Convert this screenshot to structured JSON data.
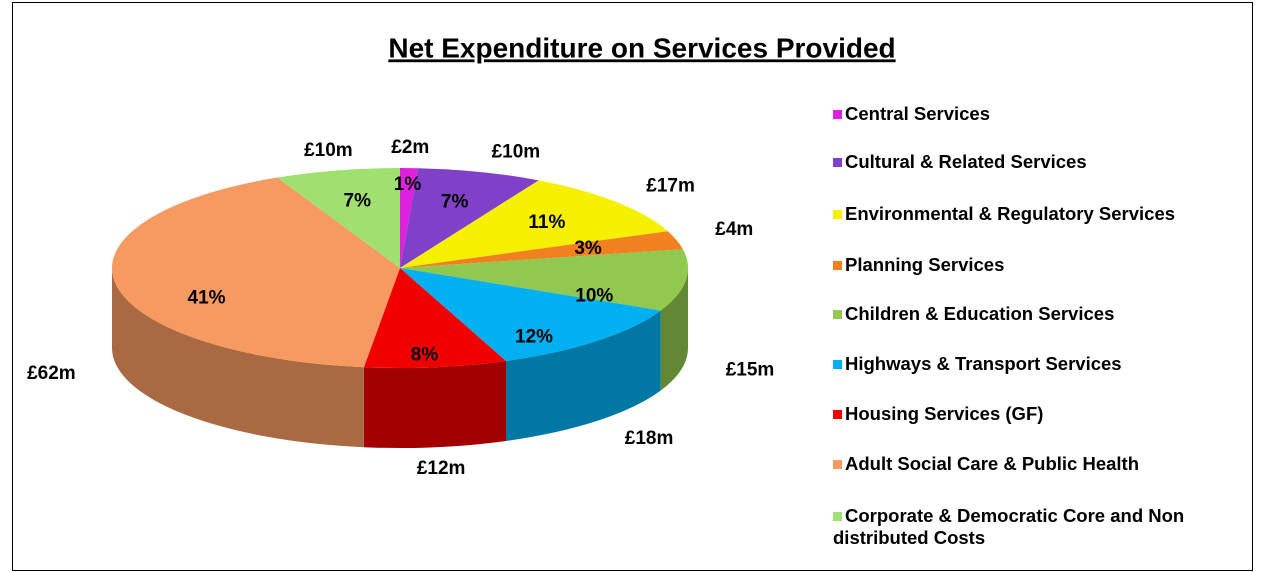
{
  "chart_data": {
    "type": "pie",
    "title": "Net Expenditure on Services Provided",
    "categories": [
      "Central Services",
      "Cultural & Related Services",
      "Environmental & Regulatory Services",
      "Planning Services",
      "Children & Education Services",
      "Highways & Transport Services",
      "Housing Services (GF)",
      "Adult Social Care & Public Health",
      "Corporate & Democratic Core and Non distributed Costs"
    ],
    "values": [
      1,
      7,
      11,
      3,
      10,
      12,
      8,
      41,
      7
    ],
    "value_labels": [
      "1%",
      "7%",
      "11%",
      "3%",
      "10%",
      "12%",
      "8%",
      "41%",
      "7%"
    ],
    "amounts": [
      2,
      10,
      17,
      4,
      15,
      18,
      12,
      62,
      10
    ],
    "amount_labels": [
      "£2m",
      "£10m",
      "£17m",
      "£4m",
      "£15m",
      "£18m",
      "£12m",
      "£62m",
      "£10m"
    ],
    "colors": [
      "#e020e0",
      "#8040c8",
      "#f4f000",
      "#f08020",
      "#90c850",
      "#00b0f0",
      "#f00000",
      "#f79a62",
      "#a0e070"
    ],
    "legend": "right"
  }
}
